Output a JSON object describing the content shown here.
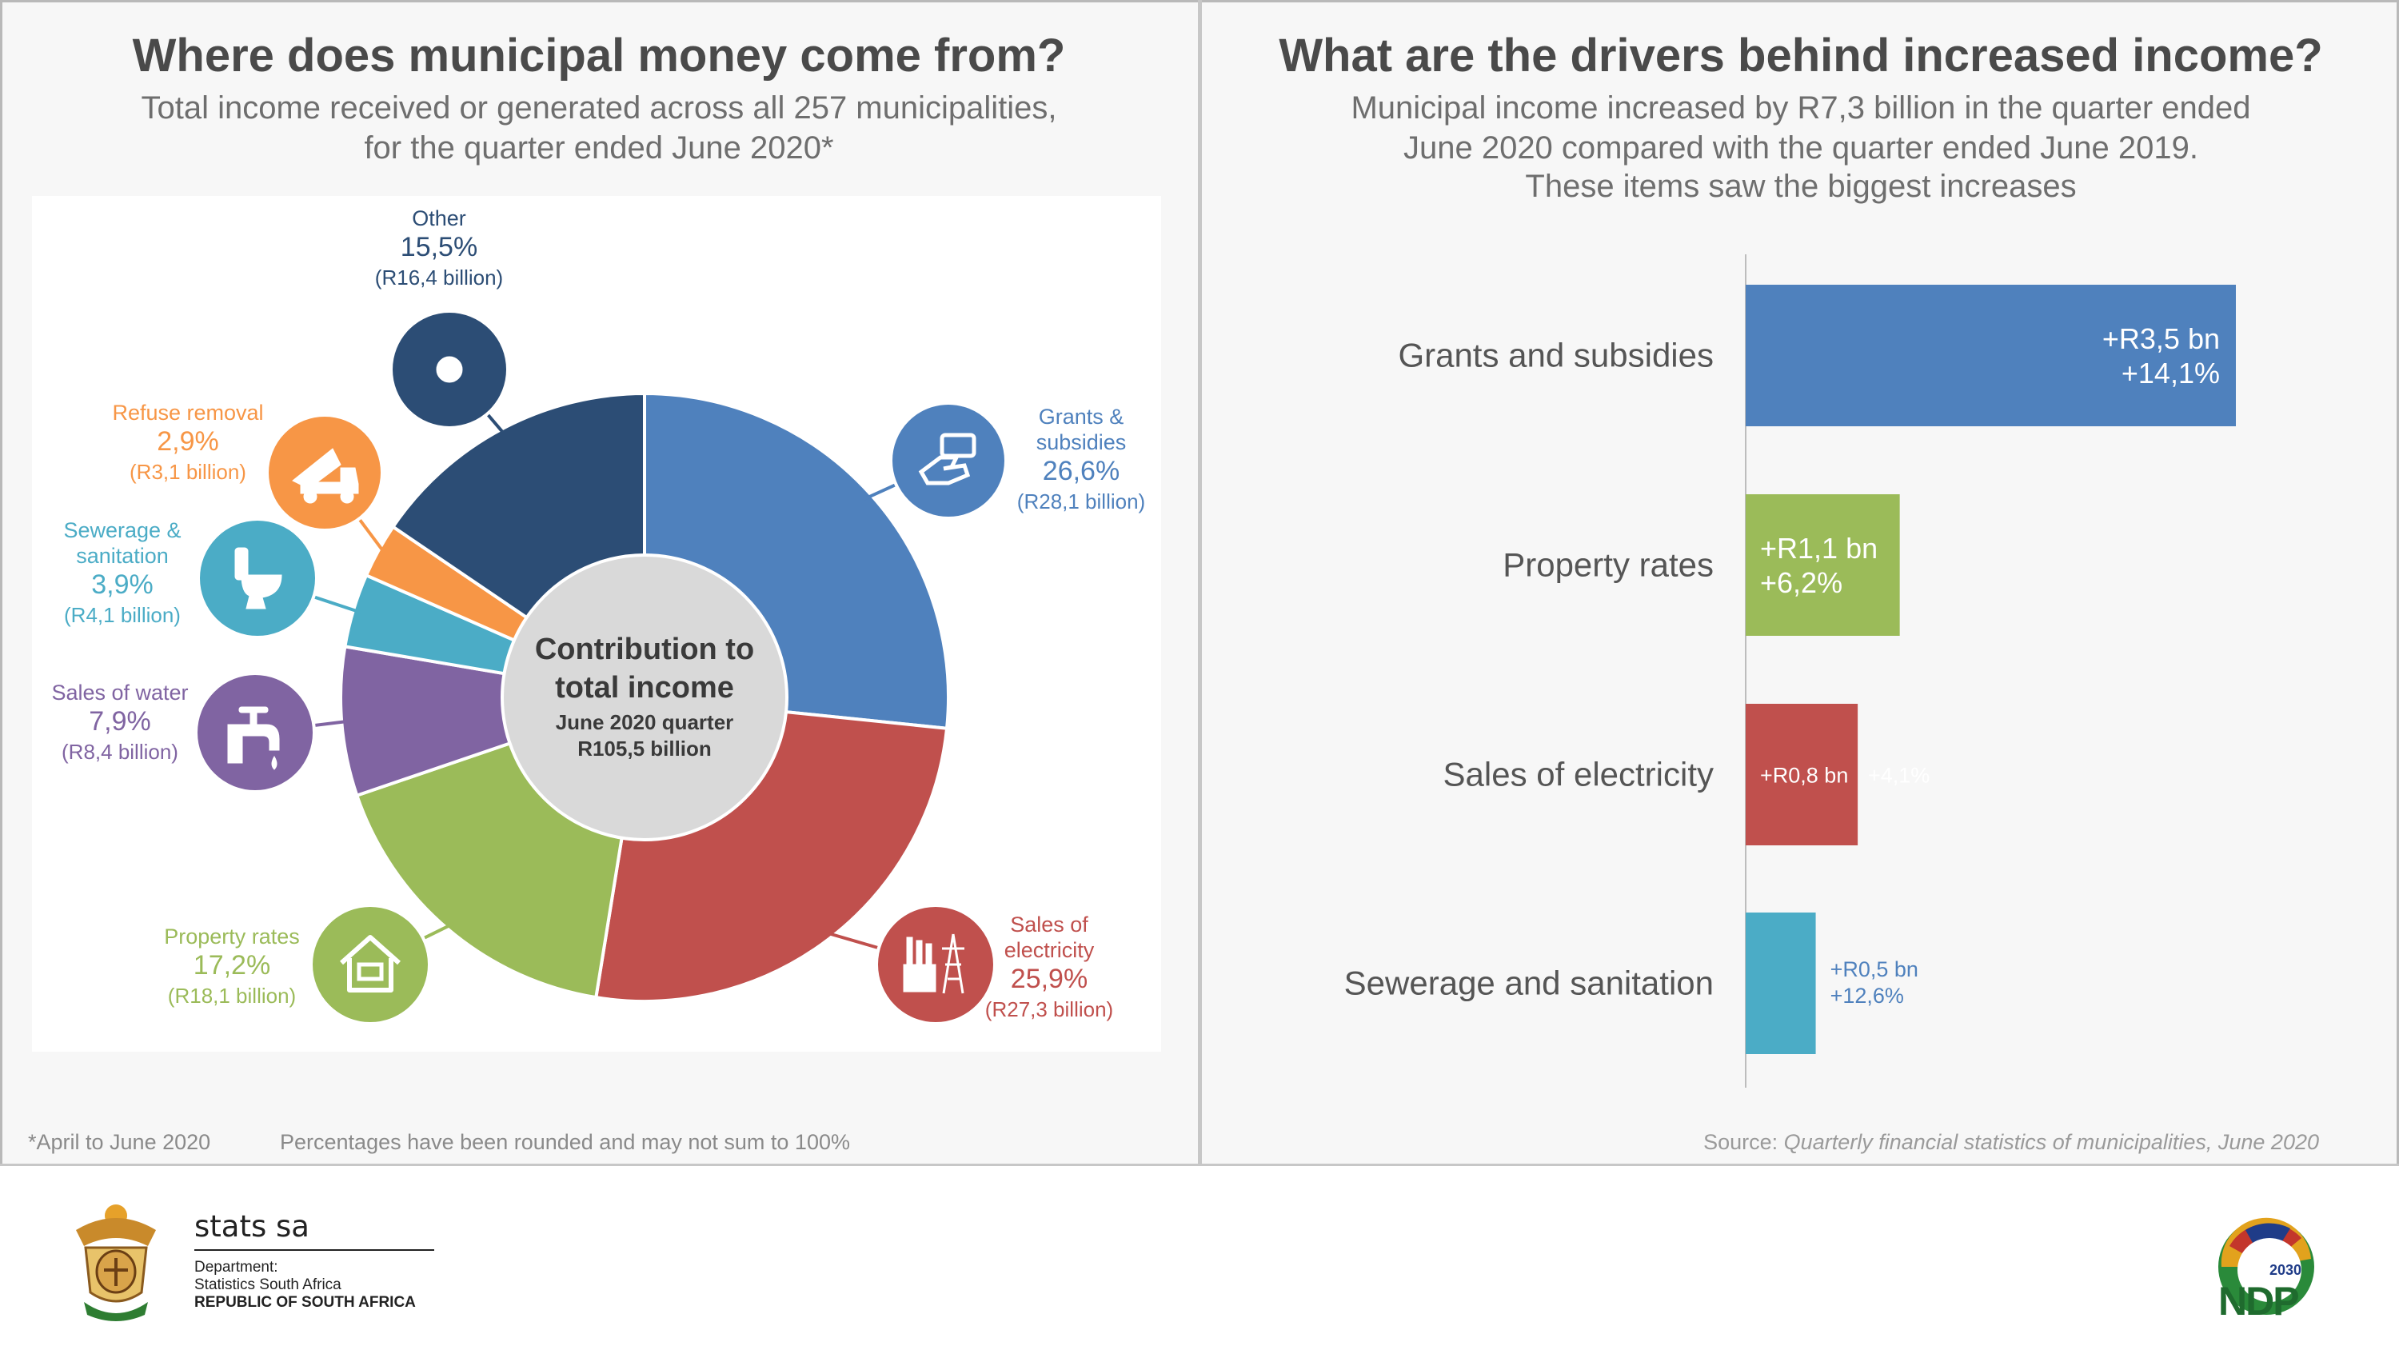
{
  "left": {
    "title": "Where does municipal money come from?",
    "subtitle_line1": "Total income received or generated across all 257 municipalities,",
    "subtitle_line2": "for the quarter ended June 2020*",
    "footnote1": "*April to June 2020",
    "footnote2": "Percentages have been rounded and may not sum to 100%"
  },
  "right": {
    "title": "What are the drivers behind increased income?",
    "subtitle_line1": "Municipal income increased by R7,3 billion in the quarter ended",
    "subtitle_line2": "June 2020 compared with the quarter ended June 2019.",
    "subtitle_line3": "These items saw the biggest increases",
    "source_label": "Source: ",
    "source_title": "Quarterly financial statistics of municipalities, June  2020"
  },
  "footer": {
    "brand": "stats sa",
    "dept": "Department:",
    "dept_name": "Statistics South Africa",
    "republic": "REPUBLIC OF SOUTH AFRICA",
    "ndp_year": "2030",
    "ndp": "NDP"
  },
  "chart_data": [
    {
      "type": "pie",
      "title": "Contribution to total income",
      "center_line1": "Contribution to",
      "center_line2": "total income",
      "center_line3": "June 2020 quarter",
      "center_line4": "R105,5 billion",
      "slices": [
        {
          "label": "Grants & subsidies",
          "label_lines": [
            "Grants &",
            "subsidies"
          ],
          "percent": 26.6,
          "pct_text": "26,6%",
          "amount_text": "(R28,1 billion)",
          "color": "#4f81bd",
          "icon": "money-hand-icon"
        },
        {
          "label": "Sales of electricity",
          "label_lines": [
            "Sales of",
            "electricity"
          ],
          "percent": 25.9,
          "pct_text": "25,9%",
          "amount_text": "(R27,3 billion)",
          "color": "#c0504d",
          "icon": "factory-pylon-icon"
        },
        {
          "label": "Property rates",
          "label_lines": [
            "Property rates"
          ],
          "percent": 17.2,
          "pct_text": "17,2%",
          "amount_text": "(R18,1 billion)",
          "color": "#9bbb59",
          "icon": "house-icon"
        },
        {
          "label": "Sales of water",
          "label_lines": [
            "Sales of water"
          ],
          "percent": 7.9,
          "pct_text": "7,9%",
          "amount_text": "(R8,4 billion)",
          "color": "#8064a2",
          "icon": "tap-icon"
        },
        {
          "label": "Sewerage & sanitation",
          "label_lines": [
            "Sewerage &",
            "sanitation"
          ],
          "percent": 3.9,
          "pct_text": "3,9%",
          "amount_text": "(R4,1 billion)",
          "color": "#4bacc6",
          "icon": "toilet-icon"
        },
        {
          "label": "Refuse removal",
          "label_lines": [
            "Refuse removal"
          ],
          "percent": 2.9,
          "pct_text": "2,9%",
          "amount_text": "(R3,1 billion)",
          "color": "#f79646",
          "icon": "truck-icon"
        },
        {
          "label": "Other",
          "label_lines": [
            "Other"
          ],
          "percent": 15.5,
          "pct_text": "15,5%",
          "amount_text": "(R16,4 billion)",
          "color": "#2c4d75",
          "icon": "dot-icon"
        }
      ]
    },
    {
      "type": "bar",
      "orientation": "horizontal",
      "title": "What are the drivers behind increased income?",
      "categories": [
        "Grants and subsidies",
        "Property rates",
        "Sales of electricity",
        "Sewerage and sanitation"
      ],
      "values": [
        3.5,
        1.1,
        0.8,
        0.5
      ],
      "value_unit": "R billion",
      "labels": [
        [
          "+R3,5 bn",
          "+14,1%"
        ],
        [
          "+R1,1 bn",
          "+6,2%"
        ],
        [
          "+R0,8 bn",
          "+4,1%"
        ],
        [
          "+R0,5 bn",
          "+12,6%"
        ]
      ],
      "colors": [
        "#4f81bd",
        "#9bbb59",
        "#c0504d",
        "#4bacc6"
      ],
      "label_colors": [
        "#ffffff",
        "#ffffff",
        "#ffffff",
        "#4f81bd"
      ]
    }
  ]
}
